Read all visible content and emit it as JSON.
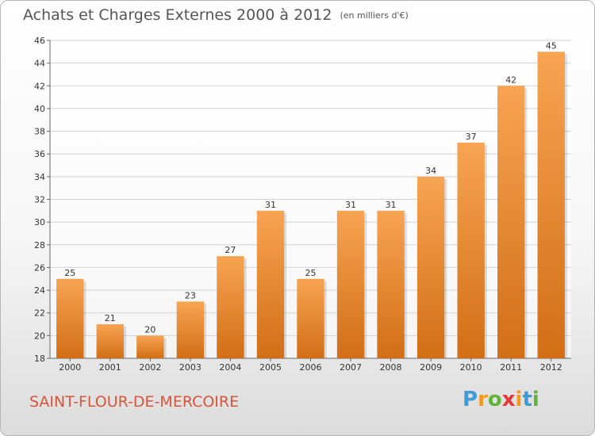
{
  "title": "Achats et Charges Externes 2000 à 2012",
  "unit_note": "(en milliers d'€)",
  "commune": "SAINT-FLOUR-DE-MERCOIRE",
  "logo": {
    "letters": [
      "P",
      "r",
      "o",
      "x",
      "i",
      "t",
      "i"
    ],
    "colors": [
      "#3e9bd6",
      "#f29a1f",
      "#5fb43b",
      "#e4373a",
      "#f29a1f",
      "#3e9bd6",
      "#5fb43b"
    ]
  },
  "colors": {
    "bar_top": "#f7a452",
    "bar_bottom": "#d26e16",
    "title": "#555555",
    "commune": "#d8553a"
  },
  "chart_data": {
    "type": "bar",
    "categories": [
      "2000",
      "2001",
      "2002",
      "2003",
      "2004",
      "2005",
      "2006",
      "2007",
      "2008",
      "2009",
      "2010",
      "2011",
      "2012"
    ],
    "values": [
      25,
      21,
      20,
      23,
      27,
      31,
      25,
      31,
      31,
      34,
      37,
      42,
      45
    ],
    "ylim": [
      18,
      46
    ],
    "yticks": [
      18,
      20,
      22,
      24,
      26,
      28,
      30,
      32,
      34,
      36,
      38,
      40,
      42,
      44,
      46
    ],
    "grid": true,
    "data_labels": true
  }
}
